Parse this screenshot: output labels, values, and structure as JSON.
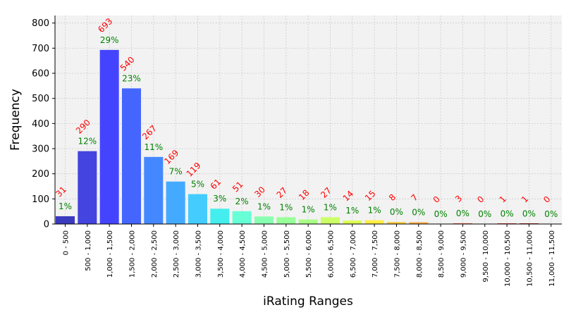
{
  "chart_data": {
    "type": "bar",
    "title": "",
    "xlabel": "iRating Ranges",
    "ylabel": "Frequency",
    "ylim": [
      0,
      830
    ],
    "yticks": [
      0,
      100,
      200,
      300,
      400,
      500,
      600,
      700,
      800
    ],
    "grid": true,
    "categories": [
      "0 - 500",
      "500 - 1,000",
      "1,000 - 1,500",
      "1,500 - 2,000",
      "2,000 - 2,500",
      "2,500 - 3,000",
      "3,000 - 3,500",
      "3,500 - 4,000",
      "4,000 - 4,500",
      "4,500 - 5,000",
      "5,000 - 5,500",
      "5,500 - 6,000",
      "6,000 - 6,500",
      "6,500 - 7,000",
      "7,000 - 7,500",
      "7,500 - 8,000",
      "8,000 - 8,500",
      "8,500 - 9,000",
      "9,000 - 9,500",
      "9,500 - 10,000",
      "10,000 - 10,500",
      "10,500 - 11,000",
      "11,000 - 11,500"
    ],
    "values": [
      31,
      290,
      693,
      540,
      267,
      169,
      119,
      61,
      51,
      30,
      27,
      18,
      27,
      14,
      15,
      8,
      7,
      0,
      3,
      0,
      1,
      1,
      0
    ],
    "percent_labels": [
      "1%",
      "12%",
      "29%",
      "23%",
      "11%",
      "7%",
      "5%",
      "3%",
      "2%",
      "1%",
      "1%",
      "1%",
      "1%",
      "1%",
      "1%",
      "0%",
      "0%",
      "0%",
      "0%",
      "0%",
      "0%",
      "0%",
      "0%"
    ],
    "colors": [
      "#3b3bbf",
      "#4444e0",
      "#4444ff",
      "#4466ff",
      "#4488ff",
      "#44aaff",
      "#44ccff",
      "#44eeee",
      "#66ffd6",
      "#88ffb0",
      "#99ff99",
      "#aaff88",
      "#ccff66",
      "#ddff55",
      "#ffee44",
      "#ffcc44",
      "#ffaa44",
      "#ff8844",
      "#ff6644",
      "#ff4444",
      "#ee3333",
      "#cc2222",
      "#aa1111"
    ]
  }
}
